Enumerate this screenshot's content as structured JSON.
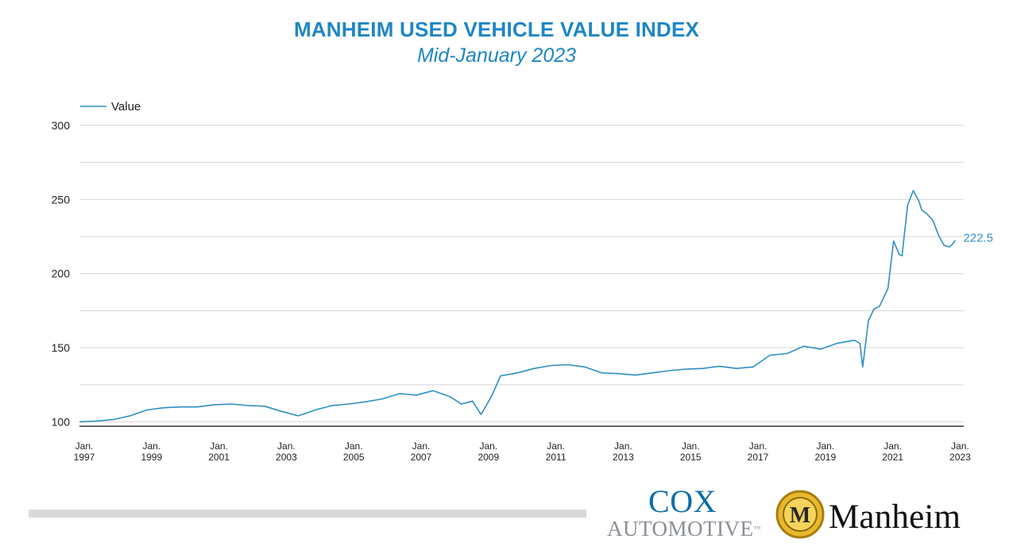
{
  "header": {
    "title": "MANHEIM USED VEHICLE VALUE INDEX",
    "subtitle": "Mid-January 2023"
  },
  "chart_data": {
    "type": "line",
    "title": "MANHEIM USED VEHICLE VALUE INDEX",
    "subtitle": "Mid-January 2023",
    "xlabel": "",
    "ylabel": "",
    "ylim": [
      97,
      300
    ],
    "xlim": [
      "1997-01",
      "2023-04"
    ],
    "y_ticks": [
      100,
      150,
      200,
      250,
      300
    ],
    "x_ticks": [
      {
        "date": "1997-01",
        "label_top": "Jan.",
        "label_bottom": "1997"
      },
      {
        "date": "1999-01",
        "label_top": "Jan.",
        "label_bottom": "1999"
      },
      {
        "date": "2001-01",
        "label_top": "Jan.",
        "label_bottom": "2001"
      },
      {
        "date": "2003-01",
        "label_top": "Jan.",
        "label_bottom": "2003"
      },
      {
        "date": "2005-01",
        "label_top": "Jan.",
        "label_bottom": "2005"
      },
      {
        "date": "2007-01",
        "label_top": "Jan.",
        "label_bottom": "2007"
      },
      {
        "date": "2009-01",
        "label_top": "Jan.",
        "label_bottom": "2009"
      },
      {
        "date": "2011-01",
        "label_top": "Jan.",
        "label_bottom": "2011"
      },
      {
        "date": "2013-01",
        "label_top": "Jan.",
        "label_bottom": "2013"
      },
      {
        "date": "2015-01",
        "label_top": "Jan.",
        "label_bottom": "2015"
      },
      {
        "date": "2017-01",
        "label_top": "Jan.",
        "label_bottom": "2017"
      },
      {
        "date": "2019-01",
        "label_top": "Jan.",
        "label_bottom": "2019"
      },
      {
        "date": "2021-01",
        "label_top": "Jan.",
        "label_bottom": "2021"
      },
      {
        "date": "2023-01",
        "label_top": "Jan.",
        "label_bottom": "2023"
      }
    ],
    "grid": true,
    "legend": {
      "position": "top-left",
      "entries": [
        "Value"
      ]
    },
    "end_label": "222.5",
    "line_color": "#2e8fc3",
    "series": [
      {
        "name": "Value",
        "x": [
          "1997-01",
          "1997-07",
          "1998-01",
          "1998-07",
          "1999-01",
          "1999-07",
          "2000-01",
          "2000-07",
          "2001-01",
          "2001-07",
          "2002-01",
          "2002-07",
          "2003-01",
          "2003-07",
          "2004-01",
          "2004-07",
          "2005-01",
          "2005-07",
          "2006-01",
          "2006-07",
          "2007-01",
          "2007-07",
          "2008-01",
          "2008-05",
          "2008-09",
          "2008-12",
          "2009-01",
          "2009-04",
          "2009-07",
          "2010-01",
          "2010-07",
          "2011-01",
          "2011-07",
          "2012-01",
          "2012-07",
          "2013-01",
          "2013-07",
          "2014-01",
          "2014-07",
          "2015-01",
          "2015-07",
          "2016-01",
          "2016-07",
          "2017-01",
          "2017-07",
          "2018-01",
          "2018-07",
          "2019-01",
          "2019-07",
          "2020-01",
          "2020-03",
          "2020-04",
          "2020-06",
          "2020-08",
          "2020-10",
          "2021-01",
          "2021-03",
          "2021-05",
          "2021-06",
          "2021-08",
          "2021-10",
          "2021-12",
          "2022-01",
          "2022-03",
          "2022-05",
          "2022-07",
          "2022-09",
          "2022-11",
          "2022-12",
          "2023-01"
        ],
        "values": [
          100.0,
          100.5,
          101.5,
          104.0,
          108.0,
          109.5,
          110.0,
          110.0,
          111.5,
          112.0,
          111.0,
          110.5,
          107.0,
          104.0,
          108.0,
          111.0,
          112.0,
          113.5,
          115.5,
          119.0,
          118.0,
          121.0,
          117.0,
          112.0,
          114.0,
          105.0,
          108.0,
          118.0,
          131.0,
          133.0,
          136.0,
          138.0,
          138.5,
          137.0,
          133.0,
          132.5,
          131.5,
          133.0,
          134.5,
          135.5,
          136.0,
          137.5,
          136.0,
          137.0,
          145.0,
          146.0,
          151.0,
          149.0,
          153.0,
          155.0,
          153.0,
          137.0,
          168.0,
          176.0,
          178.0,
          190.0,
          222.0,
          213.0,
          212.0,
          246.0,
          256.0,
          249.0,
          243.0,
          240.0,
          236.0,
          226.0,
          219.0,
          218.0,
          220.0,
          222.5
        ]
      }
    ]
  },
  "branding": {
    "cox_line1": "COX",
    "cox_line2": "AUTOMOTIVE",
    "cox_tm": "™",
    "manheim_text": "Manheim",
    "manheim_mark": "M"
  },
  "colors": {
    "accent": "#1f86c4",
    "line": "#2e8fc3",
    "grid": "#d6d6d6",
    "axis": "#333333",
    "logo_gold": "#e7b92b"
  }
}
